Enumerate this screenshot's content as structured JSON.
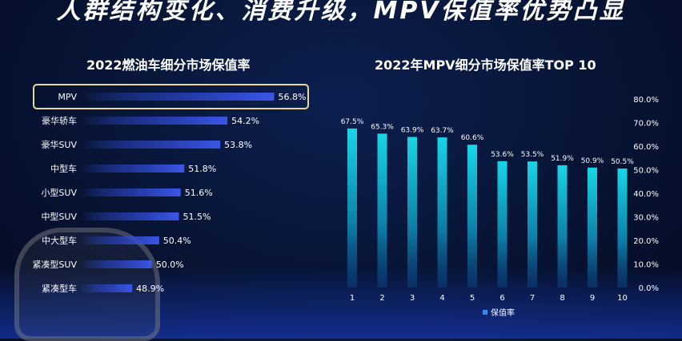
{
  "headline": "人群结构变化、消费升级，MPV保值率优势凸显",
  "chart_data": [
    {
      "type": "bar",
      "orientation": "horizontal",
      "title": "2022燃油车细分市场保值率",
      "categories": [
        "MPV",
        "豪华轿车",
        "豪华SUV",
        "中型车",
        "小型SUV",
        "中型SUV",
        "中大型车",
        "紧凑型SUV",
        "紧凑型车"
      ],
      "values": [
        56.8,
        54.2,
        53.8,
        51.8,
        51.6,
        51.5,
        50.4,
        50.0,
        48.9
      ],
      "data_labels": [
        "56.8%",
        "54.2%",
        "53.8%",
        "51.8%",
        "51.6%",
        "51.5%",
        "50.4%",
        "50.0%",
        "48.9%"
      ],
      "highlighted": "MPV",
      "bar_color": "#3a56e8",
      "highlight_border_color": "#e8d89a"
    },
    {
      "type": "bar",
      "title": "2022年MPV细分市场保值率TOP 10",
      "categories": [
        "1",
        "2",
        "3",
        "4",
        "5",
        "6",
        "7",
        "8",
        "9",
        "10"
      ],
      "values": [
        67.5,
        65.3,
        63.9,
        63.7,
        60.6,
        53.6,
        53.5,
        51.9,
        50.9,
        50.5
      ],
      "data_labels": [
        "67.5%",
        "65.3%",
        "63.9%",
        "63.7%",
        "60.6%",
        "53.6%",
        "53.5%",
        "51.9%",
        "50.9%",
        "50.5%"
      ],
      "ylim": [
        0,
        80
      ],
      "ytick_labels": [
        "0.0%",
        "10.0%",
        "20.0%",
        "30.0%",
        "40.0%",
        "50.0%",
        "60.0%",
        "70.0%",
        "80.0%"
      ],
      "y_axis_position": "right",
      "legend": {
        "label": "保值率",
        "placement": "bottom"
      },
      "bar_color_top": "#18d6e6",
      "bar_color_bottom": "#0a3c78"
    }
  ]
}
